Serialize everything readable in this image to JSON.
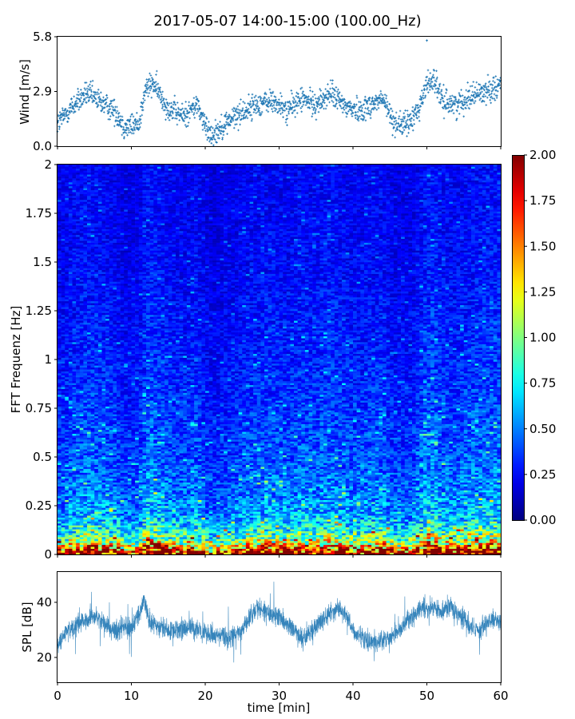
{
  "figure": {
    "title": "2017-05-07 14:00-15:00 (100.00_Hz)"
  },
  "chart_data": [
    {
      "type": "scatter",
      "name": "wind",
      "xlabel": "",
      "ylabel": "Wind [m/s]",
      "xlim": [
        0,
        60
      ],
      "ylim": [
        0,
        5.8
      ],
      "yticks": [
        0.0,
        2.9,
        5.8
      ],
      "ytick_labels": [
        "0.0",
        "2.9",
        "5.8"
      ],
      "xticks": [
        0,
        10,
        20,
        30,
        40,
        50,
        60
      ],
      "marker": "+",
      "color": "#1f77b4",
      "trend": [
        {
          "x": 0,
          "y": 1.2
        },
        {
          "x": 2,
          "y": 2.1
        },
        {
          "x": 4,
          "y": 2.8
        },
        {
          "x": 6,
          "y": 2.3
        },
        {
          "x": 8,
          "y": 1.8
        },
        {
          "x": 9,
          "y": 1.0
        },
        {
          "x": 11,
          "y": 1.2
        },
        {
          "x": 12,
          "y": 3.1
        },
        {
          "x": 13,
          "y": 3.3
        },
        {
          "x": 15,
          "y": 2.0
        },
        {
          "x": 17,
          "y": 1.6
        },
        {
          "x": 19,
          "y": 2.2
        },
        {
          "x": 20,
          "y": 1.0
        },
        {
          "x": 21,
          "y": 0.6
        },
        {
          "x": 23,
          "y": 1.3
        },
        {
          "x": 25,
          "y": 1.8
        },
        {
          "x": 27,
          "y": 2.2
        },
        {
          "x": 29,
          "y": 2.4
        },
        {
          "x": 31,
          "y": 1.9
        },
        {
          "x": 33,
          "y": 2.5
        },
        {
          "x": 35,
          "y": 2.2
        },
        {
          "x": 37,
          "y": 2.8
        },
        {
          "x": 39,
          "y": 2.1
        },
        {
          "x": 41,
          "y": 1.9
        },
        {
          "x": 43,
          "y": 2.3
        },
        {
          "x": 44,
          "y": 2.5
        },
        {
          "x": 45.5,
          "y": 1.3
        },
        {
          "x": 47,
          "y": 1.1
        },
        {
          "x": 48,
          "y": 1.4
        },
        {
          "x": 49,
          "y": 2.1
        },
        {
          "x": 50,
          "y": 3.3
        },
        {
          "x": 51,
          "y": 3.6
        },
        {
          "x": 52,
          "y": 2.4
        },
        {
          "x": 54,
          "y": 2.2
        },
        {
          "x": 56,
          "y": 2.7
        },
        {
          "x": 58,
          "y": 2.9
        },
        {
          "x": 60,
          "y": 3.3
        }
      ],
      "peak": {
        "x": 50.0,
        "y": 5.6
      }
    },
    {
      "type": "heatmap",
      "name": "spectrogram",
      "xlabel": "",
      "ylabel": "FFT Frequenz [Hz]",
      "xlim": [
        0,
        60
      ],
      "ylim": [
        0,
        2
      ],
      "yticks": [
        0,
        0.25,
        0.5,
        0.75,
        1,
        1.25,
        1.5,
        1.75,
        2
      ],
      "ytick_labels": [
        "0",
        "0.25",
        "0.5",
        "0.75",
        "1",
        "1.25",
        "1.5",
        "1.75",
        "2"
      ],
      "xticks": [
        0,
        10,
        20,
        30,
        40,
        50,
        60
      ],
      "colormap": "jet",
      "clim": [
        0.0,
        2.0
      ],
      "colorbar_ticks": [
        0.0,
        0.25,
        0.5,
        0.75,
        1.0,
        1.25,
        1.5,
        1.75,
        2.0
      ],
      "colorbar_tick_labels": [
        "0.00",
        "0.25",
        "0.50",
        "0.75",
        "1.00",
        "1.25",
        "1.50",
        "1.75",
        "2.00"
      ],
      "time_bins": 120,
      "frequency_bins": 200,
      "profile": [
        {
          "f": 0.0,
          "v": 1.9
        },
        {
          "f": 0.02,
          "v": 1.6
        },
        {
          "f": 0.04,
          "v": 1.25
        },
        {
          "f": 0.07,
          "v": 0.95
        },
        {
          "f": 0.1,
          "v": 0.78
        },
        {
          "f": 0.15,
          "v": 0.62
        },
        {
          "f": 0.2,
          "v": 0.52
        },
        {
          "f": 0.3,
          "v": 0.44
        },
        {
          "f": 0.5,
          "v": 0.36
        },
        {
          "f": 0.75,
          "v": 0.31
        },
        {
          "f": 1.0,
          "v": 0.27
        },
        {
          "f": 1.5,
          "v": 0.22
        },
        {
          "f": 2.0,
          "v": 0.2
        }
      ]
    },
    {
      "type": "line",
      "name": "spl",
      "xlabel": "time [min]",
      "ylabel": "SPL [dB]",
      "xlim": [
        0,
        60
      ],
      "ylim": [
        11,
        51
      ],
      "yticks": [
        20,
        40
      ],
      "ytick_labels": [
        "20",
        "40"
      ],
      "xticks": [
        0,
        10,
        20,
        30,
        40,
        50,
        60
      ],
      "xtick_labels": [
        "0",
        "10",
        "20",
        "30",
        "40",
        "50",
        "60"
      ],
      "color": "#1f77b4",
      "trend": [
        {
          "x": 0,
          "y": 24
        },
        {
          "x": 1,
          "y": 29
        },
        {
          "x": 2,
          "y": 31
        },
        {
          "x": 3,
          "y": 33
        },
        {
          "x": 4,
          "y": 34
        },
        {
          "x": 5,
          "y": 35
        },
        {
          "x": 6,
          "y": 33
        },
        {
          "x": 7,
          "y": 31
        },
        {
          "x": 8,
          "y": 30
        },
        {
          "x": 9,
          "y": 32
        },
        {
          "x": 10,
          "y": 30
        },
        {
          "x": 11,
          "y": 35
        },
        {
          "x": 11.7,
          "y": 41
        },
        {
          "x": 12.5,
          "y": 33
        },
        {
          "x": 14,
          "y": 31
        },
        {
          "x": 16,
          "y": 30
        },
        {
          "x": 18,
          "y": 31
        },
        {
          "x": 20,
          "y": 29
        },
        {
          "x": 21,
          "y": 28
        },
        {
          "x": 22,
          "y": 28
        },
        {
          "x": 23,
          "y": 27
        },
        {
          "x": 24,
          "y": 28
        },
        {
          "x": 25,
          "y": 30
        },
        {
          "x": 26,
          "y": 34
        },
        {
          "x": 27,
          "y": 38
        },
        {
          "x": 28,
          "y": 37
        },
        {
          "x": 29,
          "y": 36
        },
        {
          "x": 30,
          "y": 35
        },
        {
          "x": 31,
          "y": 32
        },
        {
          "x": 32,
          "y": 30
        },
        {
          "x": 33,
          "y": 27
        },
        {
          "x": 34,
          "y": 28
        },
        {
          "x": 35,
          "y": 31
        },
        {
          "x": 36,
          "y": 34
        },
        {
          "x": 37,
          "y": 36
        },
        {
          "x": 38,
          "y": 38
        },
        {
          "x": 39,
          "y": 36
        },
        {
          "x": 40,
          "y": 30
        },
        {
          "x": 41,
          "y": 27
        },
        {
          "x": 42,
          "y": 26
        },
        {
          "x": 43,
          "y": 25
        },
        {
          "x": 44,
          "y": 26
        },
        {
          "x": 45,
          "y": 27
        },
        {
          "x": 46,
          "y": 29
        },
        {
          "x": 47,
          "y": 32
        },
        {
          "x": 48,
          "y": 35
        },
        {
          "x": 49,
          "y": 37
        },
        {
          "x": 50,
          "y": 38
        },
        {
          "x": 51,
          "y": 38
        },
        {
          "x": 52,
          "y": 37
        },
        {
          "x": 53,
          "y": 39
        },
        {
          "x": 54,
          "y": 36
        },
        {
          "x": 55,
          "y": 34
        },
        {
          "x": 56,
          "y": 31
        },
        {
          "x": 57,
          "y": 30
        },
        {
          "x": 58,
          "y": 32
        },
        {
          "x": 59,
          "y": 34
        },
        {
          "x": 60,
          "y": 33
        }
      ]
    }
  ]
}
